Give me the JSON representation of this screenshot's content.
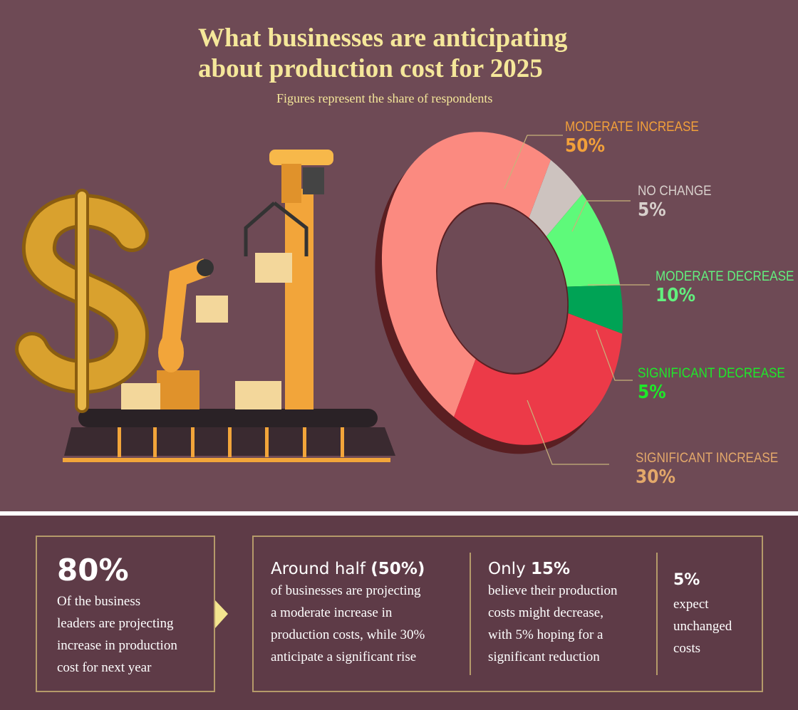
{
  "title_line1": "What businesses are anticipating",
  "title_line2": "about production cost for 2025",
  "subtitle": "Figures represent the share of respondents",
  "chart_data": {
    "type": "pie",
    "style": "3d donut",
    "slices": [
      {
        "label": "MODERATE INCREASE",
        "value": 50,
        "display": "50%",
        "color": "#fb8a80",
        "label_color": "#f2a03a"
      },
      {
        "label": "NO CHANGE",
        "value": 5,
        "display": "5%",
        "color": "#cdc3bf",
        "label_color": "#d8d0cc"
      },
      {
        "label": "MODERATE DECREASE",
        "value": 10,
        "display": "10%",
        "color": "#5efa7a",
        "label_color": "#62f07e"
      },
      {
        "label": "SIGNIFICANT DECREASE",
        "value": 5,
        "display": "5%",
        "color": "#00a355",
        "label_color": "#1ee82a"
      },
      {
        "label": "SIGNIFICANT INCREASE",
        "value": 30,
        "display": "30%",
        "color": "#ec3a48",
        "label_color": "#e3a86a"
      }
    ]
  },
  "summary": {
    "stat1": {
      "value": "80%",
      "text": [
        "Of the business",
        "leaders are projecting",
        "increase in production",
        "cost for next year"
      ]
    },
    "stat2": {
      "lead": "Around half ",
      "lead_bold": "(50%)",
      "text": [
        "of businesses are projecting",
        "a moderate increase in",
        "production costs, while 30%",
        "anticipate a significant rise"
      ]
    },
    "stat3": {
      "lead": "Only ",
      "lead_bold": "15%",
      "text": [
        "believe their production",
        "costs might decrease,",
        "with 5% hoping for a",
        "significant reduction"
      ]
    },
    "stat4": {
      "value": "5%",
      "text": [
        "expect",
        "unchanged",
        "costs"
      ]
    }
  },
  "colors": {
    "background": "#6e4a55",
    "panel": "#5e3b47",
    "title": "#f5e79a",
    "border": "#b59a6a"
  }
}
